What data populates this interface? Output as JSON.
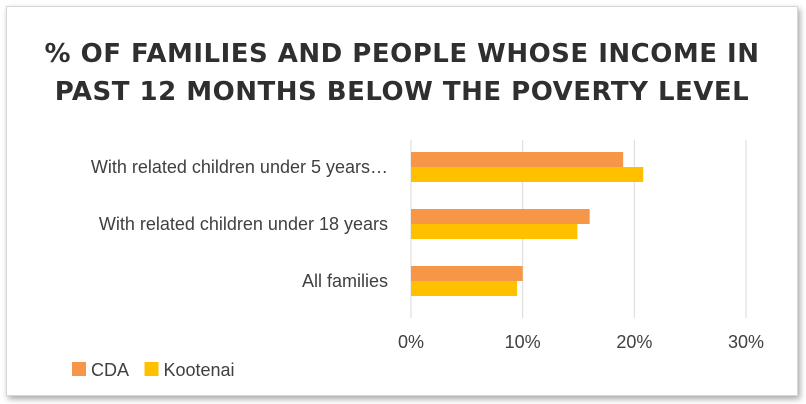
{
  "chart_data": {
    "type": "bar",
    "orientation": "horizontal",
    "title": "% of families and people whose income in past 12 months below the poverty level",
    "categories": [
      "With related children under 5 years…",
      "With related children under 18 years",
      "All families"
    ],
    "series": [
      {
        "name": "CDA",
        "values": [
          0.19,
          0.16,
          0.1
        ],
        "color": "#F79646"
      },
      {
        "name": "Kootenai",
        "values": [
          0.208,
          0.149,
          0.095
        ],
        "color": "#FFC000"
      }
    ],
    "xlim": [
      0,
      0.3
    ],
    "x_ticks": [
      "0%",
      "10%",
      "20%",
      "30%"
    ],
    "grid": "vertical",
    "legend_position": "bottom-left"
  }
}
